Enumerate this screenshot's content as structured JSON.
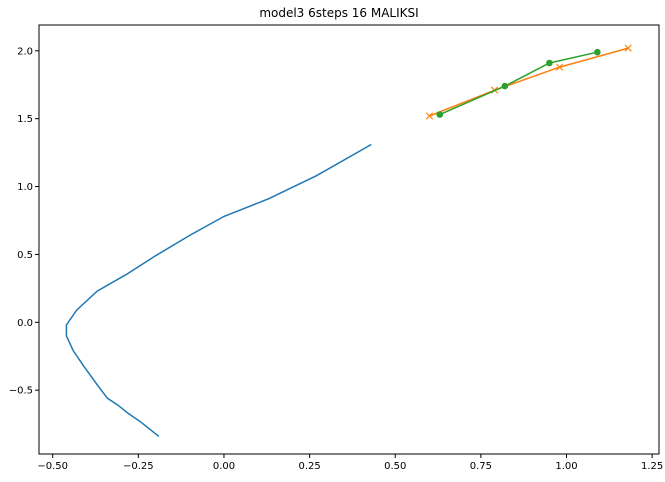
{
  "chart_data": {
    "type": "line",
    "title": "model3 6steps 16 MALIKSI",
    "xlabel": "",
    "ylabel": "",
    "xlim": [
      -0.54,
      1.27
    ],
    "ylim": [
      -0.97,
      2.19
    ],
    "xticks": [
      -0.5,
      -0.25,
      0.0,
      0.25,
      0.5,
      0.75,
      1.0,
      1.25
    ],
    "xtick_labels": [
      "−0.50",
      "−0.25",
      "0.00",
      "0.25",
      "0.50",
      "0.75",
      "1.00",
      "1.25"
    ],
    "yticks": [
      -0.5,
      0.0,
      0.5,
      1.0,
      1.5,
      2.0
    ],
    "ytick_labels": [
      "−0.5",
      "0.0",
      "0.5",
      "1.0",
      "1.5",
      "2.0"
    ],
    "grid": false,
    "series": [
      {
        "color": "#1f77b4",
        "marker": "none",
        "x": [
          0.43,
          0.27,
          0.13,
          0.0,
          -0.1,
          -0.2,
          -0.28,
          -0.37,
          -0.43,
          -0.46,
          -0.46,
          -0.44,
          -0.41,
          -0.39,
          -0.37,
          -0.34,
          -0.31,
          -0.28,
          -0.24,
          -0.19
        ],
        "y": [
          1.31,
          1.08,
          0.91,
          0.78,
          0.64,
          0.49,
          0.36,
          0.23,
          0.09,
          -0.02,
          -0.1,
          -0.21,
          -0.32,
          -0.39,
          -0.46,
          -0.56,
          -0.61,
          -0.67,
          -0.74,
          -0.84
        ]
      },
      {
        "color": "#ff7f0e",
        "marker": "x",
        "x": [
          0.6,
          0.79,
          0.98,
          1.18
        ],
        "y": [
          1.52,
          1.71,
          1.88,
          2.02
        ]
      },
      {
        "color": "#2ca02c",
        "marker": "o",
        "x": [
          0.63,
          0.82,
          0.95,
          1.09
        ],
        "y": [
          1.53,
          1.74,
          1.91,
          1.99
        ]
      }
    ]
  }
}
